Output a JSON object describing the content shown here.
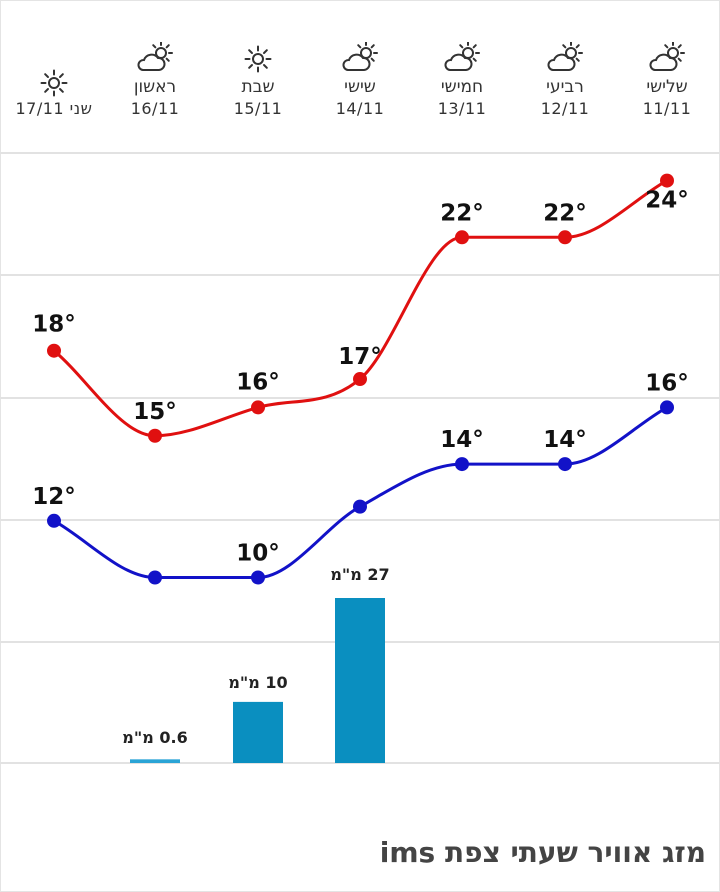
{
  "days": [
    {
      "name": "שלישי",
      "date": "11/11",
      "icon": "partly-cloudy-icon"
    },
    {
      "name": "רביעי",
      "date": "12/11",
      "icon": "partly-cloudy-icon"
    },
    {
      "name": "חמישי",
      "date": "13/11",
      "icon": "partly-cloudy-icon"
    },
    {
      "name": "שישי",
      "date": "14/11",
      "icon": "partly-cloudy-icon"
    },
    {
      "name": "שבת",
      "date": "15/11",
      "icon": "sun-icon"
    },
    {
      "name": "ראשון",
      "date": "16/11",
      "icon": "partly-cloudy-icon"
    },
    {
      "name": "",
      "date": "שני 17/11",
      "icon": "sun-icon"
    }
  ],
  "chart_data": {
    "type": "line",
    "categories": [
      "11/11",
      "12/11",
      "13/11",
      "14/11",
      "15/11",
      "16/11",
      "17/11"
    ],
    "series": [
      {
        "values": [
          24,
          22,
          22,
          17,
          16,
          15,
          18
        ],
        "color": "#e01010"
      },
      {
        "values": [
          16,
          14,
          14,
          12.5,
          10,
          10,
          12
        ],
        "color": "#1212c8"
      }
    ],
    "temp_labels": {
      "max": [
        "24°",
        "22°",
        "22°",
        "17°",
        "16°",
        "15°",
        "18°"
      ],
      "min": [
        "16°",
        "14°",
        "14°",
        "",
        "10°",
        "",
        "12°"
      ]
    },
    "precipitation": {
      "values": [
        0,
        0,
        0,
        27,
        10,
        0.6,
        0
      ],
      "labels": [
        "",
        "",
        "",
        "27 מ\"מ",
        "10 מ\"מ",
        "0.6 מ\"מ",
        ""
      ],
      "color": "#0a8fc0"
    },
    "grid": true
  },
  "footer": {
    "title": "מזג אוויר שעתי צפת ims"
  }
}
